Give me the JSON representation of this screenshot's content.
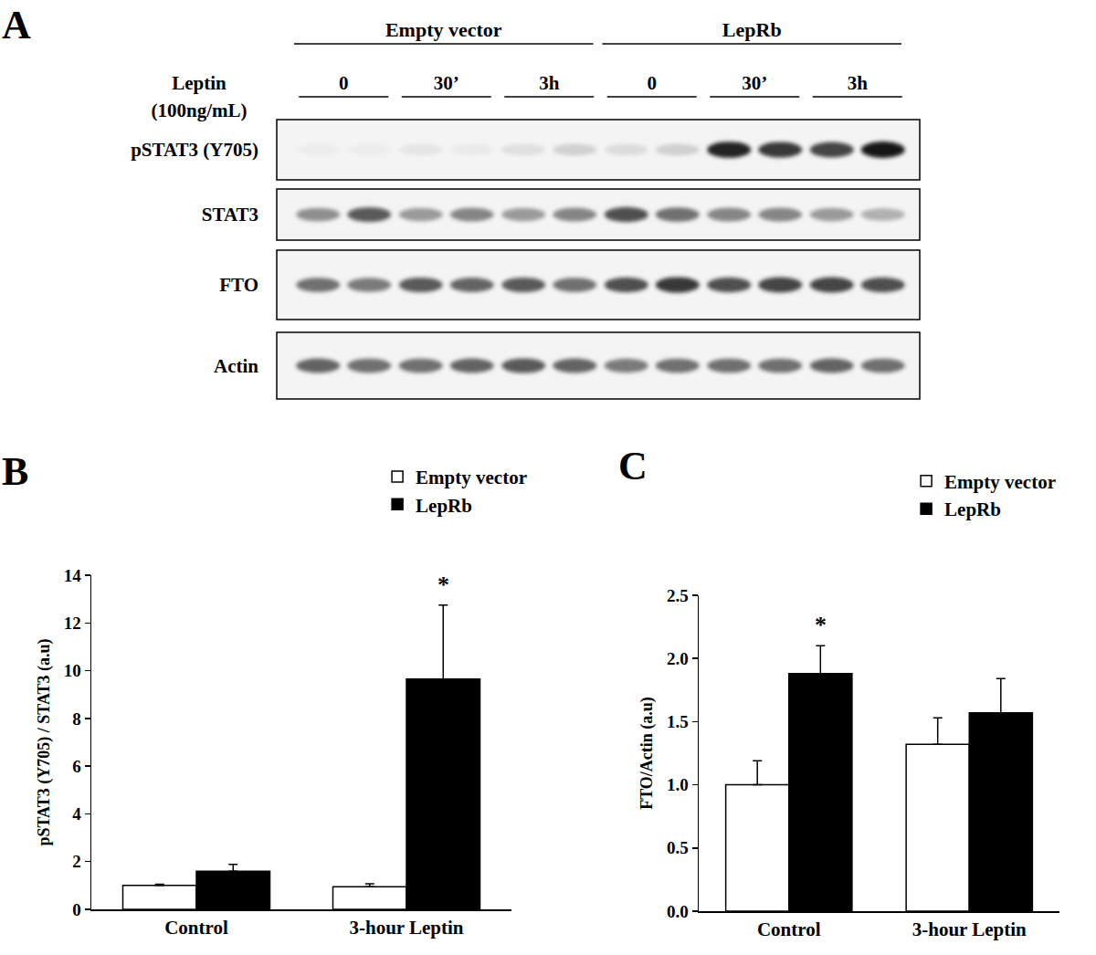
{
  "blot": {
    "panel": "A",
    "groups": [
      "Empty vector",
      "LepRb"
    ],
    "treatment_label": [
      "Leptin",
      "(100ng/mL)"
    ],
    "timepoints": [
      "0",
      "30’",
      "3h"
    ],
    "rows": [
      {
        "label": "pSTAT3 (Y705)",
        "intensity": [
          0.02,
          0.02,
          0.05,
          0.03,
          0.08,
          0.15,
          0.1,
          0.15,
          0.95,
          0.85,
          0.8,
          1.0
        ]
      },
      {
        "label": "STAT3",
        "intensity": [
          0.45,
          0.7,
          0.4,
          0.5,
          0.4,
          0.5,
          0.75,
          0.6,
          0.5,
          0.5,
          0.4,
          0.3
        ]
      },
      {
        "label": "FTO",
        "intensity": [
          0.6,
          0.55,
          0.7,
          0.65,
          0.7,
          0.6,
          0.75,
          0.85,
          0.75,
          0.8,
          0.8,
          0.75
        ]
      },
      {
        "label": "Actin",
        "intensity": [
          0.65,
          0.6,
          0.6,
          0.65,
          0.7,
          0.65,
          0.55,
          0.6,
          0.6,
          0.6,
          0.65,
          0.6
        ]
      }
    ]
  },
  "chart_data": [
    {
      "type": "bar",
      "panel": "B",
      "categories": [
        "Control",
        "3-hour Leptin"
      ],
      "series": [
        {
          "name": "Empty vector",
          "color": "#ffffff",
          "values": [
            1.0,
            0.95
          ],
          "errors": [
            0.05,
            0.12
          ]
        },
        {
          "name": "LepRb",
          "color": "#000000",
          "values": [
            1.6,
            9.65
          ],
          "errors": [
            0.28,
            3.1
          ]
        }
      ],
      "y_label": "pSTAT3 (Y705) / STAT3 (a.u)",
      "ylim": [
        0,
        14
      ],
      "yticks": [
        0,
        2,
        4,
        6,
        8,
        10,
        12,
        14
      ],
      "grid": false,
      "legend": "top right",
      "annotations": [
        {
          "text": "*",
          "category": "3-hour Leptin",
          "series": "LepRb"
        }
      ]
    },
    {
      "type": "bar",
      "panel": "C",
      "categories": [
        "Control",
        "3-hour Leptin"
      ],
      "series": [
        {
          "name": "Empty vector",
          "color": "#ffffff",
          "values": [
            1.0,
            1.32
          ],
          "errors": [
            0.19,
            0.21
          ]
        },
        {
          "name": "LepRb",
          "color": "#000000",
          "values": [
            1.88,
            1.57
          ],
          "errors": [
            0.22,
            0.27
          ]
        }
      ],
      "y_label": "FTO/Actin (a.u)",
      "ylim": [
        0,
        2.5
      ],
      "yticks": [
        {
          "value": 0,
          "label": "0.0"
        },
        0.5,
        {
          "value": 1,
          "label": "1.0"
        },
        1.5,
        {
          "value": 2,
          "label": "2.0"
        },
        2.5
      ],
      "grid": false,
      "legend": "top right",
      "annotations": [
        {
          "text": "*",
          "category": "Control",
          "series": "LepRb"
        }
      ]
    }
  ]
}
